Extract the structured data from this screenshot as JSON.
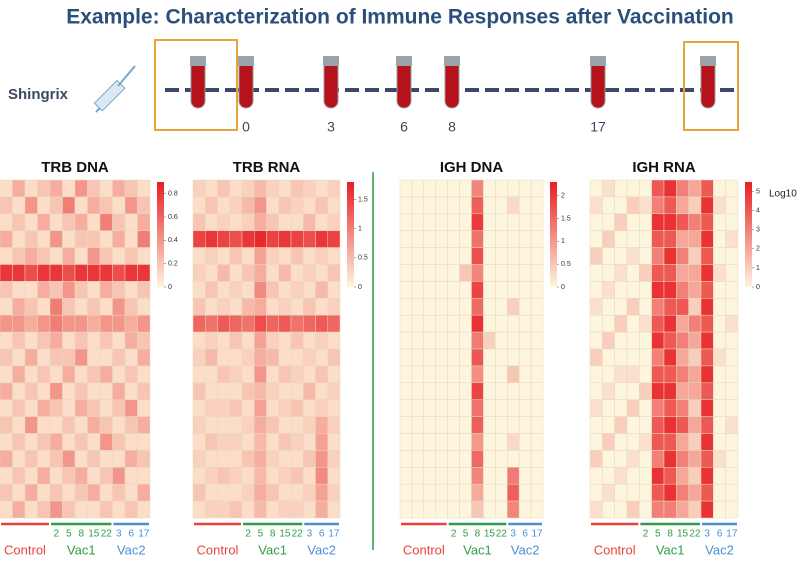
{
  "title": "Example: Characterization of Immune Responses after Vaccination",
  "timeline": {
    "label": "Shingrix",
    "days": [
      0,
      3,
      6,
      8,
      17
    ]
  },
  "chart_data": [
    {
      "type": "heatmap",
      "title": "TRB DNA",
      "categories": [
        null,
        null,
        null,
        null,
        "2",
        "5",
        "8",
        "15",
        "22",
        "3",
        "6",
        "17"
      ],
      "column_groups": [
        "Control",
        "Control",
        "Control",
        "Control",
        "Vac1",
        "Vac1",
        "Vac1",
        "Vac1",
        "Vac1",
        "Vac2",
        "Vac2",
        "Vac2"
      ],
      "group_colors": {
        "Control": "#e8433b",
        "Vac1": "#2e9e46",
        "Vac2": "#4a8fd6"
      },
      "zlim": [
        0,
        0.9
      ],
      "cbar_ticks": [
        0,
        0.2,
        0.4,
        0.6,
        0.8
      ],
      "values": [
        [
          0.1,
          0.3,
          0.1,
          0.2,
          0.3,
          0.1,
          0.4,
          0.2,
          0.1,
          0.3,
          0.2,
          0.1
        ],
        [
          0.2,
          0.1,
          0.4,
          0.1,
          0.2,
          0.5,
          0.1,
          0.3,
          0.2,
          0.1,
          0.4,
          0.2
        ],
        [
          0.1,
          0.2,
          0.1,
          0.3,
          0.1,
          0.2,
          0.3,
          0.1,
          0.5,
          0.2,
          0.1,
          0.3
        ],
        [
          0.3,
          0.1,
          0.2,
          0.1,
          0.4,
          0.1,
          0.2,
          0.2,
          0.1,
          0.3,
          0.1,
          0.5
        ],
        [
          0.1,
          0.2,
          0.3,
          0.2,
          0.1,
          0.3,
          0.1,
          0.4,
          0.2,
          0.1,
          0.2,
          0.1
        ],
        [
          0.8,
          0.8,
          0.7,
          0.8,
          0.8,
          0.7,
          0.8,
          0.8,
          0.8,
          0.7,
          0.8,
          0.8
        ],
        [
          0.2,
          0.1,
          0.1,
          0.3,
          0.2,
          0.4,
          0.2,
          0.1,
          0.3,
          0.2,
          0.1,
          0.2
        ],
        [
          0.1,
          0.3,
          0.2,
          0.1,
          0.5,
          0.2,
          0.1,
          0.2,
          0.1,
          0.4,
          0.2,
          0.1
        ],
        [
          0.4,
          0.4,
          0.3,
          0.4,
          0.5,
          0.4,
          0.4,
          0.3,
          0.4,
          0.4,
          0.3,
          0.4
        ],
        [
          0.1,
          0.2,
          0.1,
          0.2,
          0.3,
          0.1,
          0.2,
          0.1,
          0.2,
          0.1,
          0.3,
          0.2
        ],
        [
          0.2,
          0.1,
          0.3,
          0.1,
          0.2,
          0.2,
          0.4,
          0.1,
          0.1,
          0.2,
          0.1,
          0.3
        ],
        [
          0.1,
          0.3,
          0.1,
          0.2,
          0.1,
          0.3,
          0.1,
          0.2,
          0.3,
          0.1,
          0.2,
          0.1
        ],
        [
          0.3,
          0.1,
          0.2,
          0.1,
          0.4,
          0.1,
          0.2,
          0.1,
          0.1,
          0.3,
          0.1,
          0.2
        ],
        [
          0.1,
          0.2,
          0.1,
          0.3,
          0.2,
          0.1,
          0.3,
          0.2,
          0.1,
          0.2,
          0.4,
          0.1
        ],
        [
          0.2,
          0.1,
          0.4,
          0.1,
          0.1,
          0.2,
          0.1,
          0.3,
          0.2,
          0.1,
          0.2,
          0.3
        ],
        [
          0.1,
          0.2,
          0.1,
          0.2,
          0.3,
          0.1,
          0.2,
          0.1,
          0.4,
          0.2,
          0.1,
          0.1
        ],
        [
          0.3,
          0.1,
          0.2,
          0.1,
          0.2,
          0.4,
          0.1,
          0.2,
          0.1,
          0.1,
          0.3,
          0.2
        ],
        [
          0.1,
          0.2,
          0.1,
          0.3,
          0.1,
          0.2,
          0.3,
          0.1,
          0.2,
          0.4,
          0.1,
          0.1
        ],
        [
          0.2,
          0.1,
          0.3,
          0.1,
          0.2,
          0.1,
          0.2,
          0.3,
          0.1,
          0.2,
          0.1,
          0.3
        ],
        [
          0.1,
          0.3,
          0.1,
          0.2,
          0.4,
          0.2,
          0.1,
          0.1,
          0.2,
          0.1,
          0.2,
          0.1
        ]
      ]
    },
    {
      "type": "heatmap",
      "title": "TRB RNA",
      "categories": [
        null,
        null,
        null,
        null,
        "2",
        "5",
        "8",
        "15",
        "22",
        "3",
        "6",
        "17"
      ],
      "column_groups": [
        "Control",
        "Control",
        "Control",
        "Control",
        "Vac1",
        "Vac1",
        "Vac1",
        "Vac1",
        "Vac1",
        "Vac2",
        "Vac2",
        "Vac2"
      ],
      "group_colors": {
        "Control": "#e8433b",
        "Vac1": "#2e9e46",
        "Vac2": "#4a8fd6"
      },
      "zlim": [
        0,
        1.8
      ],
      "cbar_ticks": [
        0,
        0.5,
        1,
        1.5
      ],
      "values": [
        [
          0.3,
          0.2,
          0.4,
          0.2,
          0.3,
          0.5,
          0.3,
          0.2,
          0.4,
          0.3,
          0.2,
          0.3
        ],
        [
          0.2,
          0.4,
          0.2,
          0.3,
          0.5,
          0.8,
          0.2,
          0.4,
          0.3,
          0.2,
          0.4,
          0.2
        ],
        [
          0.4,
          0.2,
          0.3,
          0.2,
          0.3,
          0.6,
          0.4,
          0.2,
          0.2,
          0.5,
          0.2,
          0.3
        ],
        [
          1.5,
          1.6,
          1.5,
          1.4,
          1.6,
          1.7,
          1.5,
          1.6,
          1.5,
          1.4,
          1.6,
          1.5
        ],
        [
          0.2,
          0.3,
          0.2,
          0.4,
          0.2,
          0.7,
          0.3,
          0.2,
          0.4,
          0.2,
          0.3,
          0.2
        ],
        [
          0.3,
          0.2,
          0.5,
          0.2,
          0.4,
          0.6,
          0.2,
          0.5,
          0.2,
          0.3,
          0.2,
          0.4
        ],
        [
          0.2,
          0.4,
          0.2,
          0.3,
          0.2,
          0.9,
          0.4,
          0.2,
          0.3,
          0.2,
          0.5,
          0.2
        ],
        [
          0.4,
          0.2,
          0.3,
          0.2,
          0.5,
          0.6,
          0.2,
          0.3,
          0.2,
          0.4,
          0.2,
          0.3
        ],
        [
          1.2,
          1.1,
          1.3,
          1.2,
          1.1,
          1.4,
          1.2,
          1.3,
          1.1,
          1.2,
          1.3,
          1.2
        ],
        [
          0.2,
          0.3,
          0.2,
          0.4,
          0.2,
          0.7,
          0.3,
          0.2,
          0.4,
          0.2,
          0.3,
          0.2
        ],
        [
          0.3,
          0.5,
          0.2,
          0.2,
          0.3,
          0.6,
          0.5,
          0.2,
          0.2,
          0.3,
          0.2,
          0.4
        ],
        [
          0.2,
          0.2,
          0.4,
          0.3,
          0.2,
          0.8,
          0.2,
          0.4,
          0.3,
          0.2,
          0.4,
          0.2
        ],
        [
          0.4,
          0.2,
          0.2,
          0.2,
          0.4,
          0.5,
          0.3,
          0.2,
          0.2,
          0.5,
          0.2,
          0.3
        ],
        [
          0.2,
          0.3,
          0.3,
          0.4,
          0.2,
          0.7,
          0.2,
          0.3,
          0.4,
          0.2,
          0.3,
          0.2
        ],
        [
          0.3,
          0.2,
          0.2,
          0.2,
          0.3,
          0.6,
          0.4,
          0.2,
          0.2,
          0.3,
          0.6,
          0.3
        ],
        [
          0.2,
          0.4,
          0.3,
          0.3,
          0.2,
          0.5,
          0.2,
          0.4,
          0.3,
          0.2,
          0.7,
          0.2
        ],
        [
          0.3,
          0.2,
          0.2,
          0.2,
          0.4,
          0.6,
          0.3,
          0.2,
          0.2,
          0.4,
          0.8,
          0.3
        ],
        [
          0.2,
          0.3,
          0.4,
          0.3,
          0.2,
          0.5,
          0.2,
          0.3,
          0.4,
          0.2,
          0.9,
          0.2
        ],
        [
          0.4,
          0.2,
          0.2,
          0.2,
          0.3,
          0.6,
          0.4,
          0.2,
          0.2,
          0.3,
          0.7,
          0.3
        ],
        [
          0.2,
          0.3,
          0.3,
          0.4,
          0.2,
          0.5,
          0.2,
          0.3,
          0.3,
          0.2,
          0.6,
          0.2
        ]
      ]
    },
    {
      "type": "heatmap",
      "title": "IGH DNA",
      "categories": [
        null,
        null,
        null,
        null,
        "2",
        "5",
        "8",
        "15",
        "22",
        "3",
        "6",
        "17"
      ],
      "column_groups": [
        "Control",
        "Control",
        "Control",
        "Control",
        "Vac1",
        "Vac1",
        "Vac1",
        "Vac1",
        "Vac1",
        "Vac2",
        "Vac2",
        "Vac2"
      ],
      "group_colors": {
        "Control": "#e8433b",
        "Vac1": "#2e9e46",
        "Vac2": "#4a8fd6"
      },
      "zlim": [
        0,
        2.3
      ],
      "cbar_ticks": [
        0,
        0.5,
        1,
        1.5,
        2
      ],
      "values": [
        [
          0,
          0,
          0,
          0,
          0,
          0,
          1.2,
          0,
          0,
          0,
          0,
          0
        ],
        [
          0,
          0,
          0,
          0,
          0,
          0,
          1.6,
          0,
          0,
          0.3,
          0,
          0
        ],
        [
          0,
          0,
          0,
          0,
          0,
          0,
          2,
          0,
          0,
          0,
          0,
          0
        ],
        [
          0,
          0,
          0,
          0,
          0,
          0,
          1.4,
          0,
          0,
          0,
          0,
          0
        ],
        [
          0,
          0,
          0,
          0,
          0,
          0,
          1.8,
          0,
          0,
          0,
          0,
          0
        ],
        [
          0,
          0,
          0,
          0,
          0,
          0.5,
          1.2,
          0,
          0,
          0,
          0,
          0
        ],
        [
          0,
          0,
          0,
          0,
          0,
          0,
          1.9,
          0,
          0,
          0,
          0,
          0
        ],
        [
          0,
          0,
          0,
          0,
          0,
          0,
          1.5,
          0,
          0,
          0.4,
          0,
          0
        ],
        [
          0,
          0,
          0,
          0,
          0,
          0,
          2.1,
          0,
          0,
          0,
          0,
          0
        ],
        [
          0,
          0,
          0,
          0,
          0,
          0,
          1.3,
          0.4,
          0,
          0,
          0,
          0
        ],
        [
          0,
          0,
          0,
          0,
          0,
          0,
          1.7,
          0,
          0,
          0,
          0,
          0
        ],
        [
          0,
          0,
          0,
          0,
          0,
          0,
          1.1,
          0,
          0,
          0.5,
          0,
          0
        ],
        [
          0,
          0,
          0,
          0,
          0,
          0,
          1.9,
          0,
          0,
          0,
          0,
          0
        ],
        [
          0,
          0,
          0,
          0,
          0,
          0,
          1.4,
          0,
          0,
          0,
          0,
          0
        ],
        [
          0,
          0,
          0,
          0,
          0,
          0,
          1.6,
          0,
          0,
          0,
          0,
          0
        ],
        [
          0,
          0,
          0,
          0,
          0,
          0,
          1,
          0,
          0,
          0.3,
          0,
          0
        ],
        [
          0,
          0,
          0,
          0,
          0,
          0,
          1.5,
          0,
          0,
          0,
          0,
          0
        ],
        [
          0,
          0,
          0,
          0,
          0,
          0,
          1.2,
          0,
          0,
          1.3,
          0,
          0
        ],
        [
          0,
          0,
          0,
          0,
          0,
          0,
          0.8,
          0,
          0,
          1.6,
          0,
          0
        ],
        [
          0,
          0,
          0,
          0,
          0,
          0,
          0.5,
          0,
          0,
          1.2,
          0,
          0
        ]
      ]
    },
    {
      "type": "heatmap",
      "title": "IGH RNA",
      "categories": [
        null,
        null,
        null,
        null,
        "2",
        "5",
        "8",
        "15",
        "22",
        "3",
        "6",
        "17"
      ],
      "column_groups": [
        "Control",
        "Control",
        "Control",
        "Control",
        "Vac1",
        "Vac1",
        "Vac1",
        "Vac1",
        "Vac1",
        "Vac2",
        "Vac2",
        "Vac2"
      ],
      "group_colors": {
        "Control": "#e8433b",
        "Vac1": "#2e9e46",
        "Vac2": "#4a8fd6"
      },
      "zlim": [
        0,
        5.5
      ],
      "cbar_ticks": [
        0,
        1,
        2,
        3,
        4,
        5
      ],
      "cbar_label": "Log10",
      "values": [
        [
          0,
          0.5,
          0,
          0,
          0,
          4,
          5,
          3,
          2,
          4,
          0,
          0
        ],
        [
          0.5,
          0,
          0,
          1,
          0.5,
          3,
          4,
          2,
          1,
          5,
          0.5,
          0
        ],
        [
          0,
          0,
          1,
          0,
          0,
          5,
          5,
          4,
          3,
          4,
          0,
          0
        ],
        [
          0,
          1,
          0,
          0,
          0,
          4,
          4,
          2,
          2,
          5,
          0,
          0.5
        ],
        [
          1,
          0,
          0,
          0.5,
          0,
          3,
          5,
          3,
          1,
          4,
          0,
          0
        ],
        [
          0,
          0,
          0.5,
          0,
          1,
          4,
          4,
          2,
          2,
          5,
          0.5,
          0
        ],
        [
          0,
          0.5,
          0,
          0,
          0,
          5,
          5,
          3,
          2,
          4,
          0,
          0
        ],
        [
          0.5,
          0,
          0,
          1,
          0,
          3,
          4,
          4,
          1,
          5,
          0,
          0
        ],
        [
          0,
          0,
          1,
          0,
          0.5,
          4,
          5,
          2,
          3,
          4,
          0,
          0.5
        ],
        [
          0,
          1,
          0,
          0,
          0,
          5,
          4,
          3,
          2,
          5,
          0,
          0
        ],
        [
          1,
          0,
          0,
          0,
          0,
          3,
          5,
          2,
          1,
          4,
          0.5,
          0
        ],
        [
          0,
          0,
          0.5,
          0.5,
          0,
          4,
          4,
          3,
          2,
          5,
          0,
          0
        ],
        [
          0,
          0.5,
          0,
          0,
          1,
          5,
          5,
          2,
          2,
          4,
          0,
          0
        ],
        [
          0.5,
          0,
          0,
          1,
          0,
          3,
          4,
          3,
          1,
          5,
          0,
          0
        ],
        [
          0,
          0,
          1,
          0,
          0,
          4,
          5,
          4,
          2,
          4,
          0,
          0.5
        ],
        [
          0,
          1,
          0,
          0,
          0.5,
          4,
          4,
          2,
          1,
          5,
          0,
          0
        ],
        [
          1,
          0,
          0,
          0.5,
          0,
          3,
          5,
          3,
          2,
          4,
          0.5,
          0
        ],
        [
          0,
          0,
          0.5,
          0,
          0,
          5,
          4,
          2,
          1,
          5,
          0,
          0
        ],
        [
          0,
          0.5,
          0,
          0,
          0,
          4,
          5,
          3,
          2,
          4,
          0,
          0
        ],
        [
          0.5,
          0,
          0,
          1,
          0,
          3,
          3,
          2,
          1,
          5,
          0,
          0
        ]
      ]
    }
  ]
}
